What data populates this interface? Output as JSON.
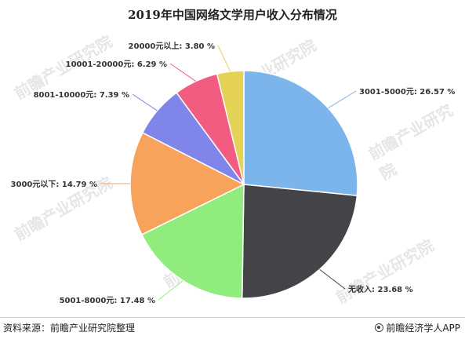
{
  "title": "2019年中国网络文学用户收入分布情况",
  "watermark": "前瞻产业研究院",
  "footer": {
    "source": "资料来源：前瞻产业研究院整理",
    "brand": "前瞻经济学人APP"
  },
  "chart_data": {
    "type": "pie",
    "title": "2019年中国网络文学用户收入分布情况",
    "slices": [
      {
        "label": "3001-5000元",
        "value": 26.57,
        "color": "#7cb5ec",
        "text": "3001-5000元: 26.57 %"
      },
      {
        "label": "无收入",
        "value": 23.68,
        "color": "#434348",
        "text": "无收入: 23.68 %"
      },
      {
        "label": "5001-8000元",
        "value": 17.48,
        "color": "#90ed7d",
        "text": "5001-8000元: 17.48 %"
      },
      {
        "label": "3000元以下",
        "value": 14.79,
        "color": "#f7a35c",
        "text": "3000元以下: 14.79 %"
      },
      {
        "label": "8001-10000元",
        "value": 7.39,
        "color": "#8085e9",
        "text": "8001-10000元: 7.39 %"
      },
      {
        "label": "10001-20000元",
        "value": 6.29,
        "color": "#f15c80",
        "text": "10001-20000元: 6.29 %"
      },
      {
        "label": "20000元以上",
        "value": 3.8,
        "color": "#e4d354",
        "text": "20000元以上: 3.80 %"
      }
    ]
  }
}
